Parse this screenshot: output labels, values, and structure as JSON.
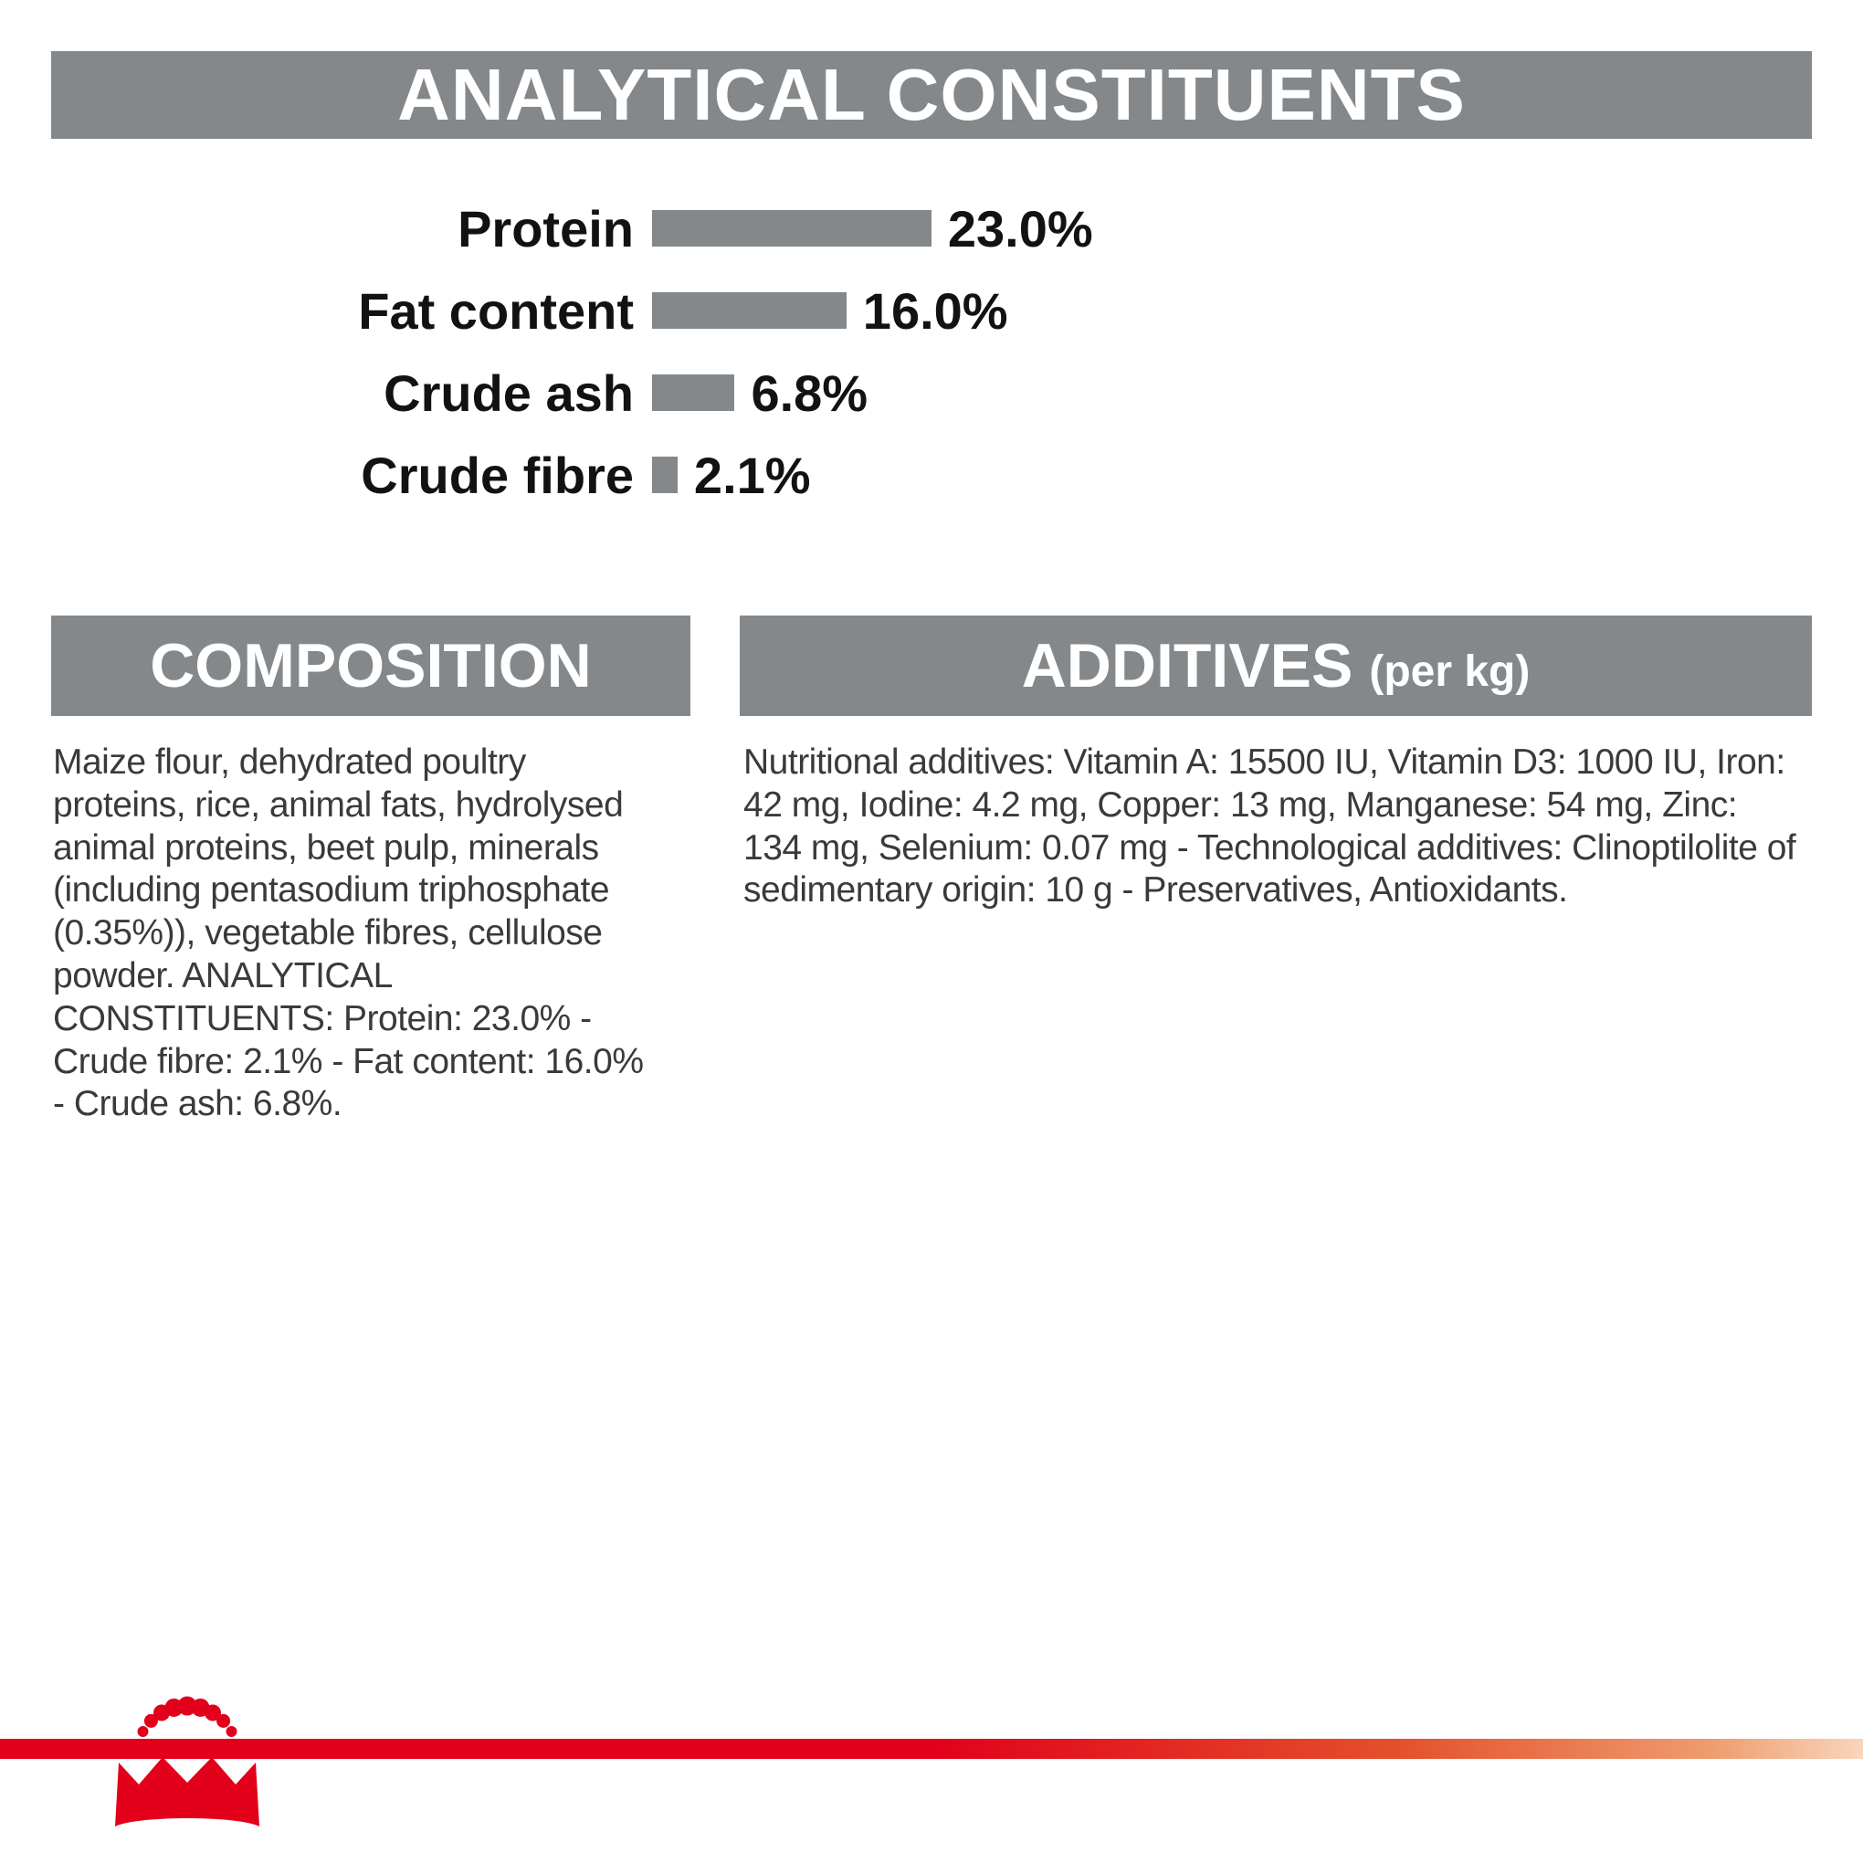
{
  "colors": {
    "banner_gray": "#84888b",
    "bar_gray": "#84888b",
    "brand_red": "#e2001a",
    "heading_text": "#ffffff",
    "label_text": "#121212",
    "body_text": "#3a3a3a"
  },
  "analytical": {
    "title": "ANALYTICAL CONSTITUENTS"
  },
  "chart_data": {
    "type": "bar",
    "orientation": "horizontal",
    "title": "ANALYTICAL CONSTITUENTS",
    "categories": [
      "Protein",
      "Fat content",
      "Crude ash",
      "Crude fibre"
    ],
    "values": [
      23.0,
      16.0,
      6.8,
      2.1
    ],
    "value_labels": [
      "23.0%",
      "16.0%",
      "6.8%",
      "2.1%"
    ],
    "unit": "%",
    "xlim": [
      0,
      25
    ],
    "bar_color": "#84888b",
    "grid": false,
    "legend": "none"
  },
  "composition": {
    "title": "COMPOSITION",
    "body": "Maize flour, dehydrated poultry proteins, rice, animal fats, hydrolysed animal proteins, beet pulp, minerals (including pentasodium triphosphate (0.35%)), vegetable fibres, cellulose powder. ANALYTICAL CONSTITUENTS: Protein: 23.0% - Crude fibre: 2.1% - Fat content: 16.0% - Crude ash: 6.8%."
  },
  "additives": {
    "title": "ADDITIVES",
    "suffix": "(per kg)",
    "body": "Nutritional additives: Vitamin A: 15500 IU, Vitamin D3: 1000 IU, Iron: 42 mg, Iodine: 4.2 mg, Copper: 13 mg, Manganese: 54 mg, Zinc: 134 mg, Selenium: 0.07 mg - Technological additives: Clinoptilolite of sedimentary origin: 10 g - Preservatives, Antioxidants."
  },
  "footer": {
    "logo": "royal-canin-crown-logo"
  }
}
